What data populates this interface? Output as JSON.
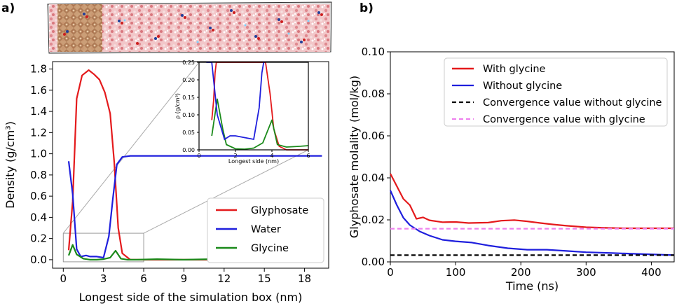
{
  "panel_a_label": "a)",
  "panel_b_label": "b)",
  "chart_data": [
    {
      "id": "main",
      "type": "line",
      "xlabel": "Longest side of the simulation box (nm)",
      "ylabel": "Density (g/cm³)",
      "xlim": [
        -0.8,
        19.8
      ],
      "ylim": [
        -0.08,
        1.87
      ],
      "xticks": [
        0,
        3,
        6,
        9,
        12,
        15,
        18
      ],
      "yticks": [
        0.0,
        0.2,
        0.4,
        0.6,
        0.8,
        1.0,
        1.2,
        1.4,
        1.6,
        1.8
      ],
      "ytick_labels": [
        "0.0",
        "0.2",
        "0.4",
        "0.6",
        "0.8",
        "1.0",
        "1.2",
        "1.4",
        "1.6",
        "1.8"
      ],
      "legend": "lower-right",
      "series": [
        {
          "name": "Glyphosate",
          "color": "#e41a1c",
          "x": [
            0.4,
            0.7,
            1.0,
            1.4,
            1.9,
            2.3,
            2.7,
            3.1,
            3.5,
            3.8,
            4.1,
            4.4,
            5.0,
            6,
            8,
            10,
            12,
            14,
            16,
            18,
            19.3
          ],
          "y": [
            0.09,
            0.55,
            1.52,
            1.74,
            1.79,
            1.75,
            1.7,
            1.58,
            1.38,
            0.92,
            0.3,
            0.06,
            0.0,
            0.0,
            0.0,
            0.0,
            0.0,
            0.0,
            0.0,
            0.0,
            0.0
          ]
        },
        {
          "name": "Water",
          "color": "#1f1fdd",
          "x": [
            0.4,
            0.7,
            1.0,
            1.3,
            1.7,
            2.0,
            2.5,
            3.0,
            3.4,
            3.7,
            4.0,
            4.4,
            5.0,
            6,
            8,
            10,
            12,
            14,
            16,
            18,
            19.3
          ],
          "y": [
            0.93,
            0.62,
            0.1,
            0.03,
            0.04,
            0.03,
            0.03,
            0.02,
            0.22,
            0.58,
            0.9,
            0.97,
            0.98,
            0.98,
            0.98,
            0.98,
            0.98,
            0.98,
            0.98,
            0.98,
            0.98
          ],
          "inset_x": [
            0.4,
            0.7,
            1.0,
            1.4,
            1.7,
            2.0,
            2.5,
            3.0,
            3.3,
            3.45,
            3.55,
            3.6
          ],
          "inset_y": [
            0.25,
            0.25,
            0.1,
            0.03,
            0.04,
            0.04,
            0.035,
            0.03,
            0.12,
            0.22,
            0.25,
            0.25
          ]
        },
        {
          "name": "Glycine",
          "color": "#1a8a1a",
          "x": [
            0.4,
            0.7,
            1.0,
            1.5,
            2.0,
            2.5,
            3.0,
            3.5,
            3.9,
            4.3,
            4.8,
            5.5,
            7,
            9,
            11,
            13,
            15,
            17,
            19.3
          ],
          "y": [
            0.04,
            0.14,
            0.05,
            0.01,
            0.0,
            0.0,
            0.005,
            0.02,
            0.085,
            0.01,
            0.0,
            0.0,
            0.005,
            0.0,
            0.005,
            0.0,
            0.005,
            0.0,
            0.005
          ]
        }
      ]
    },
    {
      "id": "inset",
      "type": "line",
      "xlabel": "Longest side (nm)",
      "ylabel": "ρ (g/cm³)",
      "xlim": [
        0,
        6
      ],
      "ylim": [
        0,
        0.25
      ],
      "xticks": [
        0,
        2,
        4,
        6
      ],
      "yticks": [
        0.0,
        0.05,
        0.1,
        0.15,
        0.2,
        0.25
      ],
      "ytick_labels": [
        "0.00",
        "0.05",
        "0.10",
        "0.15",
        "0.20",
        "0.25"
      ],
      "series": [
        {
          "name": "Glyphosate",
          "color": "#e41a1c",
          "x": [
            0.7,
            0.8,
            0.88,
            0.95,
            3.65,
            3.9,
            4.1,
            4.4,
            4.8,
            5.5,
            6.0
          ],
          "y": [
            0.085,
            0.14,
            0.22,
            0.25,
            0.25,
            0.16,
            0.06,
            0.01,
            0.0,
            0.0,
            0.0
          ]
        },
        {
          "name": "Glycine",
          "color": "#1a8a1a",
          "x": [
            0.7,
            1.0,
            1.3,
            1.5,
            2.0,
            2.5,
            3.0,
            3.5,
            4.0,
            4.3,
            4.8,
            5.5,
            6.0
          ],
          "y": [
            0.04,
            0.145,
            0.06,
            0.015,
            0.003,
            0.002,
            0.005,
            0.02,
            0.085,
            0.015,
            0.008,
            0.01,
            0.012
          ]
        }
      ]
    },
    {
      "id": "b",
      "type": "line",
      "xlabel": "Time (ns)",
      "ylabel": "Glyphosate molality (mol/kg)",
      "xlim": [
        0,
        435
      ],
      "ylim": [
        0,
        0.1
      ],
      "xticks": [
        0,
        100,
        200,
        300,
        400
      ],
      "yticks": [
        0.0,
        0.02,
        0.04,
        0.06,
        0.08,
        0.1
      ],
      "ytick_labels": [
        "0.00",
        "0.02",
        "0.04",
        "0.06",
        "0.08",
        "0.10"
      ],
      "legend": "top-right",
      "series": [
        {
          "name": "With glycine",
          "color": "#e41a1c",
          "style": "solid",
          "x": [
            0,
            10,
            20,
            30,
            40,
            50,
            60,
            80,
            100,
            120,
            150,
            170,
            190,
            210,
            230,
            250,
            270,
            300,
            330,
            360,
            400,
            435
          ],
          "y": [
            0.042,
            0.036,
            0.03,
            0.027,
            0.0205,
            0.0212,
            0.0198,
            0.0189,
            0.019,
            0.0185,
            0.0187,
            0.0196,
            0.0199,
            0.0193,
            0.0185,
            0.0178,
            0.0172,
            0.0165,
            0.0162,
            0.016,
            0.016,
            0.016
          ]
        },
        {
          "name": "Without glycine",
          "color": "#1f1fdd",
          "style": "solid",
          "x": [
            0,
            10,
            20,
            30,
            45,
            60,
            80,
            100,
            125,
            150,
            180,
            210,
            240,
            270,
            300,
            340,
            380,
            435
          ],
          "y": [
            0.034,
            0.027,
            0.021,
            0.0175,
            0.0145,
            0.0125,
            0.0105,
            0.0098,
            0.0092,
            0.0078,
            0.0065,
            0.0058,
            0.0058,
            0.0052,
            0.0046,
            0.0042,
            0.0038,
            0.0032
          ]
        },
        {
          "name": "Convergence value without glycine",
          "color": "#000000",
          "style": "dashed",
          "x": [
            0,
            435
          ],
          "y": [
            0.0032,
            0.0032
          ]
        },
        {
          "name": "Convergence value with glycine",
          "color": "#ee82ee",
          "style": "dashed",
          "x": [
            0,
            435
          ],
          "y": [
            0.0158,
            0.0158
          ]
        }
      ]
    }
  ]
}
